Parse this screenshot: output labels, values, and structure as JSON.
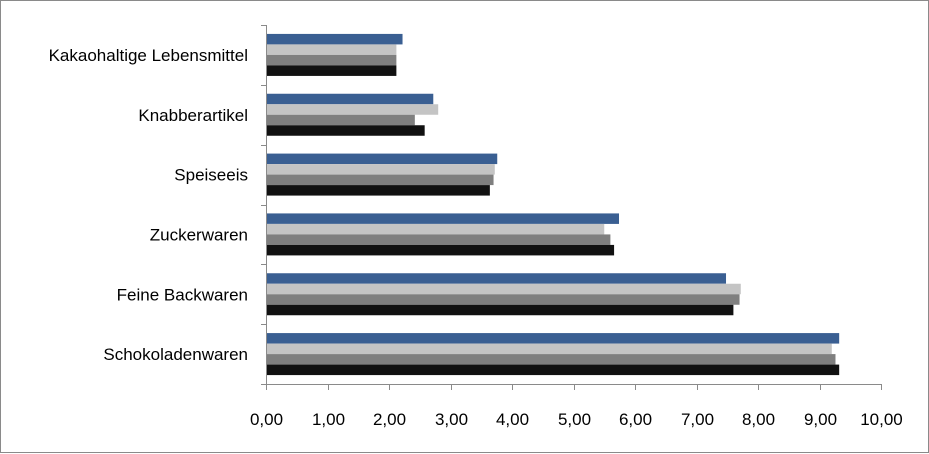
{
  "chart_data": {
    "type": "bar",
    "orientation": "horizontal",
    "title": "",
    "xlabel": "",
    "ylabel": "",
    "categories": [
      "Kakaohaltige Lebensmittel",
      "Knabberartikel",
      "Speiseeis",
      "Zuckerwaren",
      "Feine Backwaren",
      "Schokoladenwaren"
    ],
    "series": [
      {
        "values": [
          2.22,
          2.72,
          3.76,
          5.74,
          7.48,
          9.32
        ],
        "color": "#3a5f92"
      },
      {
        "values": [
          2.12,
          2.8,
          3.72,
          5.5,
          7.72,
          9.2
        ],
        "color": "#c4c4c4"
      },
      {
        "values": [
          2.12,
          2.42,
          3.7,
          5.6,
          7.7,
          9.26
        ],
        "color": "#7f7f7f"
      },
      {
        "values": [
          2.12,
          2.58,
          3.64,
          5.66,
          7.6,
          9.32
        ],
        "color": "#111111"
      }
    ],
    "xlim": [
      0,
      10
    ],
    "xticks": [
      "0,00",
      "1,00",
      "2,00",
      "3,00",
      "4,00",
      "5,00",
      "6,00",
      "7,00",
      "8,00",
      "9,00",
      "10,00"
    ],
    "grid": false,
    "legend": "none"
  }
}
